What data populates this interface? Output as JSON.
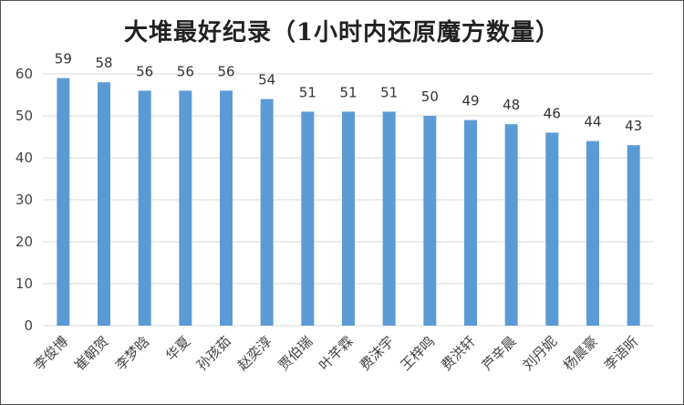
{
  "chart_data": {
    "type": "bar",
    "title": "大堆最好纪录（1小时内还原魔方数量）",
    "categories": [
      "李俊博",
      "崔朝贺",
      "李梦晗",
      "华夏",
      "孙孩茹",
      "赵奕淳",
      "贾伯瑞",
      "叶芊霖",
      "费沫宇",
      "王梓鸣",
      "费洪轩",
      "芦辛晨",
      "刘丹妮",
      "杨晨豪",
      "李语昕"
    ],
    "values": [
      59,
      58,
      56,
      56,
      56,
      54,
      51,
      51,
      51,
      50,
      49,
      48,
      46,
      44,
      43
    ],
    "yticks": [
      "0",
      "10",
      "20",
      "30",
      "40",
      "50",
      "60"
    ],
    "ylim": [
      0,
      60
    ],
    "grid": true,
    "legend": "none",
    "bar_color": "#5B9BD5",
    "grid_color": "#D9D9D9"
  }
}
